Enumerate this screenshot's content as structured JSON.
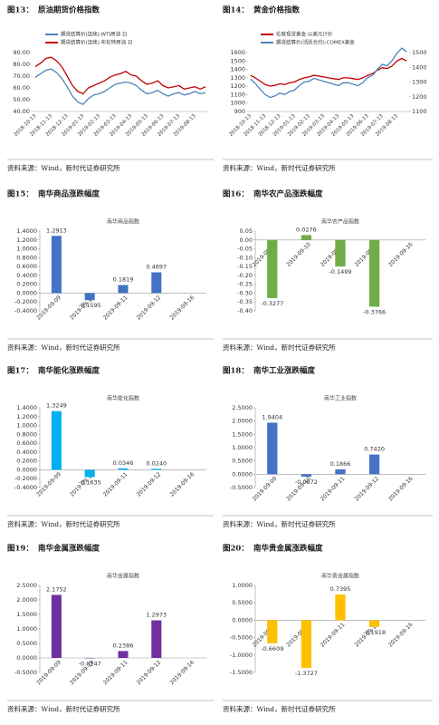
{
  "chart_data": [
    {
      "type": "line",
      "figure": "图13：",
      "title": "原油期货价格指数",
      "categories": [
        "2018-10-13",
        null,
        null,
        "2018-11-13",
        null,
        null,
        "2018-12-13",
        null,
        null,
        "2019-01-13",
        null,
        null,
        "2019-02-13",
        null,
        null,
        "2019-03-13",
        null,
        null,
        "2019-04-13",
        null,
        null,
        "2019-05-13",
        null,
        null,
        "2019-06-13",
        null,
        null,
        "2019-07-13",
        null,
        null,
        "2019-08-13",
        null,
        null
      ],
      "series": [
        {
          "name": "期货结算价(连续):WTI原油 日",
          "color": "#4f81bd",
          "values": [
            69,
            72,
            75,
            76,
            73,
            68,
            61,
            53,
            48,
            46,
            51,
            54,
            55,
            57,
            60,
            63,
            64,
            65,
            64,
            62,
            58,
            55,
            56,
            58,
            55,
            53,
            55,
            56,
            54,
            55,
            57,
            55,
            56
          ]
        },
        {
          "name": "期货结算价(连续):布伦特原油 日",
          "color": "#c00000",
          "values": [
            78,
            81,
            85,
            86,
            83,
            78,
            70,
            62,
            57,
            55,
            60,
            62,
            64,
            66,
            69,
            71,
            72,
            74,
            71,
            70,
            66,
            63,
            64,
            66,
            62,
            60,
            61,
            62,
            59,
            60,
            61,
            59,
            61
          ]
        }
      ],
      "ylim": [
        40,
        90
      ],
      "yticks": [
        {
          "value": 40,
          "label": "40.00"
        },
        {
          "value": 50,
          "label": "50.00"
        },
        {
          "value": 60,
          "label": "60.00"
        },
        {
          "value": 70,
          "label": "70.00"
        },
        {
          "value": 80,
          "label": "80.00"
        },
        {
          "value": 90,
          "label": "90.00"
        }
      ],
      "source": "资料来源：Wind，新时代证券研究所"
    },
    {
      "type": "line",
      "figure": "图14：",
      "title": "黄金价格指数",
      "categories": [
        "2018-10-13",
        null,
        null,
        "2018-11-13",
        null,
        null,
        "2018-12-13",
        null,
        null,
        "2019-01-13",
        null,
        null,
        "2019-02-13",
        null,
        null,
        "2019-03-13",
        null,
        null,
        "2019-04-13",
        null,
        null,
        "2019-05-13",
        null,
        null,
        "2019-06-13",
        null,
        null,
        "2019-07-13",
        null,
        null,
        "2019-08-13",
        null,
        null
      ],
      "series": [
        {
          "name": "伦敦现货黄金:以美元计价",
          "color": "#c00000",
          "values": [
            1330,
            1300,
            1260,
            1220,
            1200,
            1210,
            1230,
            1220,
            1240,
            1250,
            1280,
            1300,
            1310,
            1330,
            1320,
            1310,
            1300,
            1290,
            1280,
            1300,
            1300,
            1290,
            1280,
            1300,
            1330,
            1350,
            1390,
            1420,
            1410,
            1440,
            1500,
            1530,
            1500
          ]
        },
        {
          "name": "期货结算价(活跃合约):COMEX黄金",
          "color": "#4f81bd",
          "axis": "y2",
          "values": [
            1320,
            1290,
            1250,
            1215,
            1195,
            1205,
            1225,
            1215,
            1235,
            1245,
            1275,
            1300,
            1305,
            1325,
            1315,
            1305,
            1295,
            1285,
            1275,
            1295,
            1295,
            1285,
            1275,
            1295,
            1330,
            1345,
            1385,
            1420,
            1410,
            1445,
            1495,
            1530,
            1505
          ]
        }
      ],
      "ylim": [
        900,
        1600
      ],
      "yticks": [
        900,
        1000,
        1100,
        1200,
        1300,
        1400,
        1500,
        1600
      ],
      "y2lim": [
        1100,
        1500
      ],
      "y2ticks": [
        1100,
        1200,
        1300,
        1400,
        1500
      ],
      "source": "资料来源：Wind，新时代证券研究所"
    },
    {
      "type": "bar",
      "figure": "图15：",
      "title": "南华商品涨跌幅度",
      "subtitle": "南华商品指数",
      "color": "#4472c4",
      "categories": [
        "2019-09-09",
        "2019-09-10",
        "2019-09-11",
        "2019-09-12",
        "2019-09-16"
      ],
      "values": [
        1.2913,
        -0.1595,
        0.1819,
        0.4697,
        null
      ],
      "value_labels": [
        "1.2913",
        "-0.1595",
        "0.1819",
        "0.4697",
        null
      ],
      "ylim": [
        -0.4,
        1.4
      ],
      "yticks": [
        {
          "value": -0.4,
          "label": "-0.4000"
        },
        {
          "value": -0.2,
          "label": "-0.2000"
        },
        {
          "value": 0,
          "label": "0.0000"
        },
        {
          "value": 0.2,
          "label": "0.2000"
        },
        {
          "value": 0.4,
          "label": "0.4000"
        },
        {
          "value": 0.6,
          "label": "0.6000"
        },
        {
          "value": 0.8,
          "label": "0.8000"
        },
        {
          "value": 1,
          "label": "1.0000"
        },
        {
          "value": 1.2,
          "label": "1.2000"
        },
        {
          "value": 1.4,
          "label": "1.4000"
        }
      ],
      "source": "资料来源：Wind，新时代证券研究所"
    },
    {
      "type": "bar",
      "figure": "图16：",
      "title": "南华农产品涨跌幅度",
      "subtitle": "南华农产品指数",
      "color": "#70ad47",
      "categories": [
        "2019-09-09",
        "2019-09-10",
        "2019-09-11",
        "2019-09-12",
        "2019-09-16"
      ],
      "values": [
        -0.3277,
        0.0276,
        -0.1499,
        -0.3766,
        null
      ],
      "value_labels": [
        "-0.3277",
        "0.0276",
        "-0.1499",
        "-0.3766",
        null
      ],
      "ylim": [
        -0.4,
        0.05
      ],
      "yticks": [
        {
          "value": -0.4,
          "label": "-0.40"
        },
        {
          "value": -0.35,
          "label": "-0.35"
        },
        {
          "value": -0.3,
          "label": "-0.30"
        },
        {
          "value": -0.25,
          "label": "-0.25"
        },
        {
          "value": -0.2,
          "label": "-0.20"
        },
        {
          "value": -0.15,
          "label": "-0.15"
        },
        {
          "value": -0.1,
          "label": "-0.10"
        },
        {
          "value": -0.05,
          "label": "-0.05"
        },
        {
          "value": 0,
          "label": "0.00"
        },
        {
          "value": 0.05,
          "label": "0.05"
        }
      ],
      "source": "资料来源：Wind，新时代证券研究所"
    },
    {
      "type": "bar",
      "figure": "图17：",
      "title": "南华能化涨跌幅度",
      "subtitle": "南华能化指数",
      "color": "#00b0f0",
      "categories": [
        "2019-09-09",
        "2019-09-10",
        "2019-09-11",
        "2019-09-12",
        "2019-09-16"
      ],
      "values": [
        1.3249,
        -0.1635,
        0.0346,
        0.024,
        null
      ],
      "value_labels": [
        "1.3249",
        "-0.1635",
        "0.0346",
        "0.0240",
        null
      ],
      "ylim": [
        -0.4,
        1.4
      ],
      "yticks": [
        {
          "value": -0.4,
          "label": "-0.4000"
        },
        {
          "value": -0.2,
          "label": "-0.2000"
        },
        {
          "value": 0,
          "label": "0.0000"
        },
        {
          "value": 0.2,
          "label": "0.2000"
        },
        {
          "value": 0.4,
          "label": "0.4000"
        },
        {
          "value": 0.6,
          "label": "0.6000"
        },
        {
          "value": 0.8,
          "label": "0.8000"
        },
        {
          "value": 1,
          "label": "1.0000"
        },
        {
          "value": 1.2,
          "label": "1.2000"
        },
        {
          "value": 1.4,
          "label": "1.4000"
        }
      ],
      "source": "资料来源：Wind，新时代证券研究所"
    },
    {
      "type": "bar",
      "figure": "图18：",
      "title": "南华工业涨跌幅度",
      "subtitle": "南华工业指数",
      "color": "#4472c4",
      "categories": [
        "2019-09-09",
        "2019-09-10",
        "2019-09-11",
        "2019-09-12",
        "2019-09-16"
      ],
      "values": [
        1.9404,
        -0.0872,
        0.1866,
        0.742,
        null
      ],
      "value_labels": [
        "1.9404",
        "-0.0872",
        "0.1866",
        "0.7420",
        null
      ],
      "ylim": [
        -0.5,
        2.5
      ],
      "yticks": [
        {
          "value": -0.5,
          "label": "-0.5000"
        },
        {
          "value": 0,
          "label": "0.0000"
        },
        {
          "value": 0.5,
          "label": "0.5000"
        },
        {
          "value": 1,
          "label": "1.0000"
        },
        {
          "value": 1.5,
          "label": "1.5000"
        },
        {
          "value": 2,
          "label": "2.0000"
        },
        {
          "value": 2.5,
          "label": "2.5000"
        }
      ],
      "source": "资料来源：Wind，新时代证券研究所"
    },
    {
      "type": "bar",
      "figure": "图19：",
      "title": "南华金属涨跌幅度",
      "subtitle": "南华金属指数",
      "color": "#7030a0",
      "categories": [
        "2019-09-09",
        "2019-09-10",
        "2019-09-11",
        "2019-09-12",
        "2019-09-16"
      ],
      "values": [
        2.1752,
        -0.0147,
        0.2386,
        1.2973,
        null
      ],
      "value_labels": [
        "2.1752",
        "-0.0147",
        "0.2386",
        "1.2973",
        null
      ],
      "ylim": [
        -0.5,
        2.5
      ],
      "yticks": [
        {
          "value": -0.5,
          "label": "-0.5000"
        },
        {
          "value": 0,
          "label": "0.0000"
        },
        {
          "value": 0.5,
          "label": "0.5000"
        },
        {
          "value": 1,
          "label": "1.0000"
        },
        {
          "value": 1.5,
          "label": "1.5000"
        },
        {
          "value": 2,
          "label": "2.0000"
        },
        {
          "value": 2.5,
          "label": "2.5000"
        }
      ],
      "source": "资料来源：Wind，新时代证券研究所"
    },
    {
      "type": "bar",
      "figure": "图20：",
      "title": "南华贵金属涨跌幅度",
      "subtitle": "南华贵金属指数",
      "color": "#ffc000",
      "categories": [
        "2019-09-09",
        "2019-09-10",
        "2019-09-11",
        "2019-09-12",
        "2019-09-16"
      ],
      "values": [
        -0.6609,
        -1.3727,
        0.7395,
        -0.1918,
        null
      ],
      "value_labels": [
        "-0.6609",
        "-1.3727",
        "0.7395",
        "-0.1918",
        null
      ],
      "ylim": [
        -1.5,
        1
      ],
      "yticks": [
        {
          "value": -1.5,
          "label": "-1.5000"
        },
        {
          "value": -1,
          "label": "-1.0000"
        },
        {
          "value": -0.5,
          "label": "-0.5000"
        },
        {
          "value": 0,
          "label": "0.0000"
        },
        {
          "value": 0.5,
          "label": "0.5000"
        },
        {
          "value": 1,
          "label": "1.0000"
        }
      ],
      "source": "资料来源：Wind，新时代证券研究所"
    }
  ]
}
